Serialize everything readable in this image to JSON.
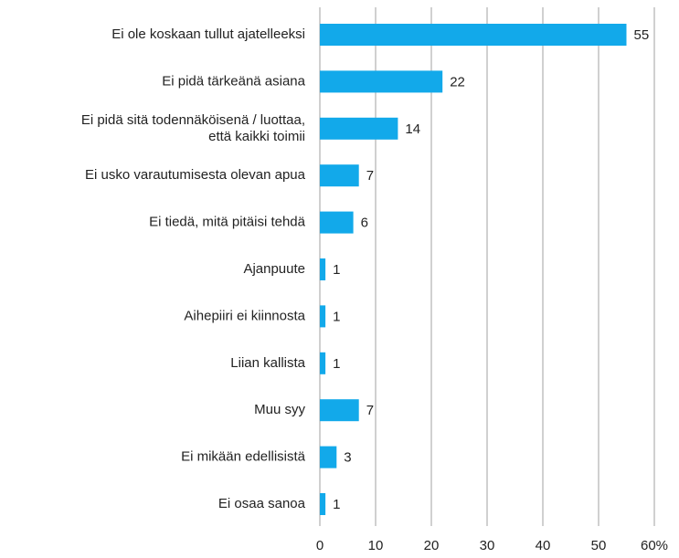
{
  "chart_data": {
    "type": "hbar",
    "categories": [
      "Ei ole koskaan tullut ajatelleeksi",
      "Ei pidä tärkeänä asiana",
      "Ei pidä sitä todennäköisenä / luottaa,\nettä kaikki toimii",
      "Ei usko varautumisesta olevan apua",
      "Ei tiedä, mitä pitäisi tehdä",
      "Ajanpuute",
      "Aihepiiri ei kiinnosta",
      "Liian kallista",
      "Muu syy",
      "Ei mikään edellisistä",
      "Ei osaa  sanoa"
    ],
    "values": [
      55,
      22,
      14,
      7,
      6,
      1,
      1,
      1,
      7,
      3,
      1
    ],
    "color": "#12a9ea",
    "xlim": [
      0,
      60
    ],
    "xticks": [
      0,
      10,
      20,
      30,
      40,
      50,
      {
        "value": 60,
        "label": "60%"
      }
    ],
    "grid": true
  }
}
